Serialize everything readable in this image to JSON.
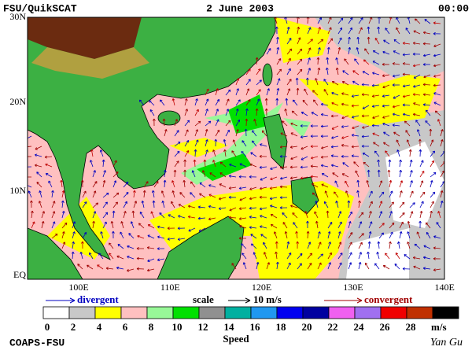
{
  "header": {
    "left": "FSU/QuikSCAT",
    "center": "2 June 2003",
    "right": "00:00"
  },
  "map": {
    "lat_labels": [
      "30N",
      "20N",
      "10N",
      "EQ"
    ],
    "lon_labels": [
      "100E",
      "110E",
      "120E",
      "130E",
      "140E"
    ]
  },
  "legend": {
    "divergent": "divergent",
    "scale": "scale",
    "scale_value": "10 m/s",
    "convergent": "convergent"
  },
  "colorbar": {
    "colors": [
      "#ffffff",
      "#c8c8c8",
      "#ffff00",
      "#ffc0c0",
      "#98f898",
      "#00e000",
      "#909090",
      "#00b0a0",
      "#2098f0",
      "#0000f0",
      "#0000a0",
      "#f060f0",
      "#a070f0",
      "#f00000",
      "#c03000",
      "#000000"
    ],
    "ticks": [
      "0",
      "2",
      "4",
      "6",
      "8",
      "10",
      "12",
      "14",
      "16",
      "18",
      "20",
      "22",
      "24",
      "26",
      "28"
    ],
    "unit": "m/s",
    "label": "Speed"
  },
  "footer": {
    "left": "COAPS-FSU",
    "right": "Yan Gu"
  }
}
